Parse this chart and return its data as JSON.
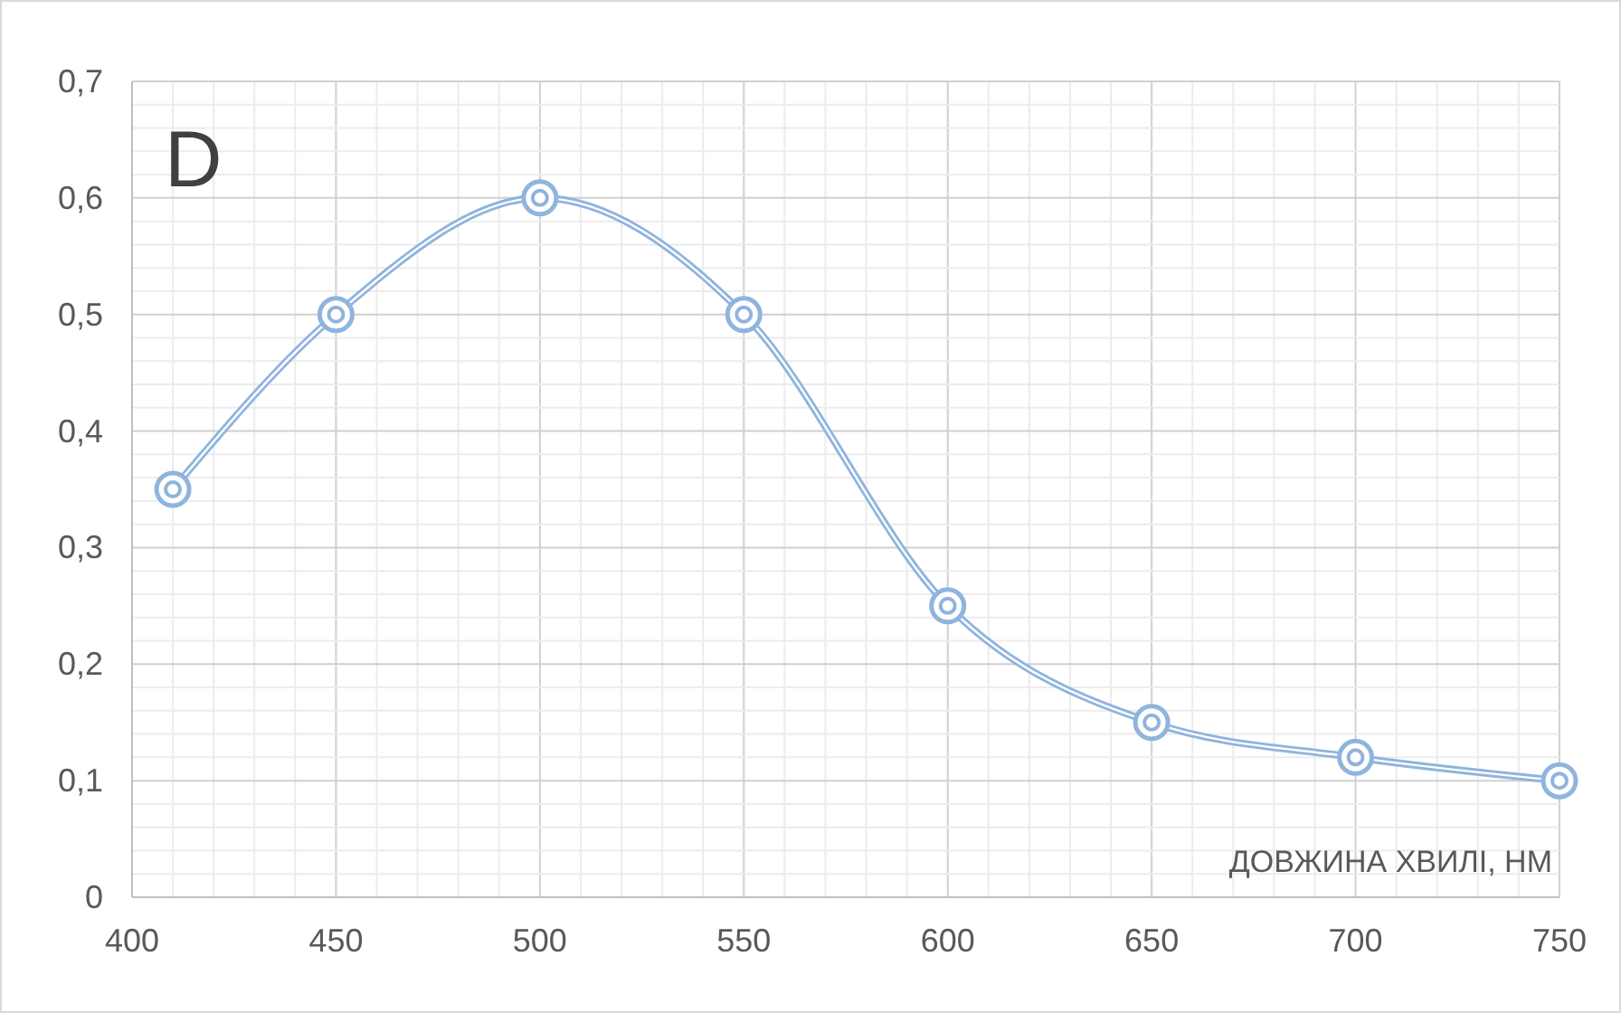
{
  "chart_data": {
    "type": "line",
    "xlabel": "ДОВЖИНА ХВИЛІ, НМ",
    "annotations": [
      "D"
    ],
    "x": [
      410,
      450,
      500,
      550,
      600,
      650,
      700,
      750
    ],
    "series": [
      {
        "color": "#8fb4de",
        "values": [
          0.35,
          0.5,
          0.6,
          0.5,
          0.25,
          0.15,
          0.12,
          0.1
        ]
      }
    ],
    "xlim": [
      400,
      750
    ],
    "xticks": [
      400,
      {
        "value": 410,
        "label": null
      },
      {
        "value": 420,
        "label": null
      },
      {
        "value": 430,
        "label": null
      },
      {
        "value": 440,
        "label": null
      },
      450,
      {
        "value": 460,
        "label": null
      },
      {
        "value": 470,
        "label": null
      },
      {
        "value": 480,
        "label": null
      },
      {
        "value": 490,
        "label": null
      },
      500,
      {
        "value": 510,
        "label": null
      },
      {
        "value": 520,
        "label": null
      },
      {
        "value": 530,
        "label": null
      },
      {
        "value": 540,
        "label": null
      },
      550,
      {
        "value": 560,
        "label": null
      },
      {
        "value": 570,
        "label": null
      },
      {
        "value": 580,
        "label": null
      },
      {
        "value": 590,
        "label": null
      },
      600,
      {
        "value": 610,
        "label": null
      },
      {
        "value": 620,
        "label": null
      },
      {
        "value": 630,
        "label": null
      },
      {
        "value": 640,
        "label": null
      },
      650,
      {
        "value": 660,
        "label": null
      },
      {
        "value": 670,
        "label": null
      },
      {
        "value": 680,
        "label": null
      },
      {
        "value": 690,
        "label": null
      },
      700,
      {
        "value": 710,
        "label": null
      },
      {
        "value": 720,
        "label": null
      },
      {
        "value": 730,
        "label": null
      },
      {
        "value": 740,
        "label": null
      },
      750
    ],
    "ylim": [
      0,
      0.7
    ],
    "yticks": [
      {
        "value": 0,
        "label": "0"
      },
      {
        "value": 0.02,
        "label": null
      },
      {
        "value": 0.04,
        "label": null
      },
      {
        "value": 0.06,
        "label": null
      },
      {
        "value": 0.08,
        "label": null
      },
      {
        "value": 0.1,
        "label": "0,1"
      },
      {
        "value": 0.12,
        "label": null
      },
      {
        "value": 0.14,
        "label": null
      },
      {
        "value": 0.16,
        "label": null
      },
      {
        "value": 0.18,
        "label": null
      },
      {
        "value": 0.2,
        "label": "0,2"
      },
      {
        "value": 0.22,
        "label": null
      },
      {
        "value": 0.24,
        "label": null
      },
      {
        "value": 0.26,
        "label": null
      },
      {
        "value": 0.28,
        "label": null
      },
      {
        "value": 0.3,
        "label": "0,3"
      },
      {
        "value": 0.32,
        "label": null
      },
      {
        "value": 0.34,
        "label": null
      },
      {
        "value": 0.36,
        "label": null
      },
      {
        "value": 0.38,
        "label": null
      },
      {
        "value": 0.4,
        "label": "0,4"
      },
      {
        "value": 0.42,
        "label": null
      },
      {
        "value": 0.44,
        "label": null
      },
      {
        "value": 0.46,
        "label": null
      },
      {
        "value": 0.48,
        "label": null
      },
      {
        "value": 0.5,
        "label": "0,5"
      },
      {
        "value": 0.52,
        "label": null
      },
      {
        "value": 0.54,
        "label": null
      },
      {
        "value": 0.56,
        "label": null
      },
      {
        "value": 0.58,
        "label": null
      },
      {
        "value": 0.6,
        "label": "0,6"
      },
      {
        "value": 0.62,
        "label": null
      },
      {
        "value": 0.64,
        "label": null
      },
      {
        "value": 0.66,
        "label": null
      },
      {
        "value": 0.68,
        "label": null
      },
      {
        "value": 0.7,
        "label": "0,7"
      }
    ],
    "grid": true,
    "marker": "circle",
    "line_style": "solid"
  }
}
